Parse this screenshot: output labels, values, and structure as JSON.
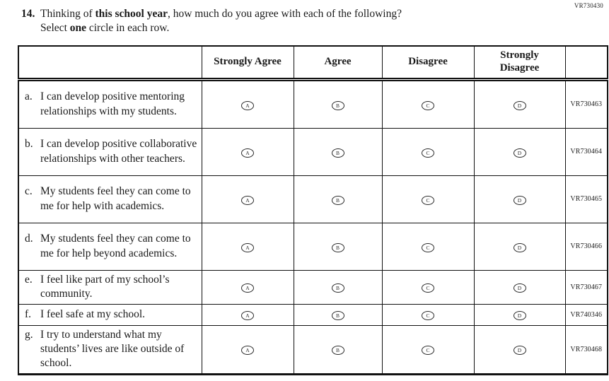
{
  "page": {
    "corner_code": "VR730430"
  },
  "question": {
    "number": "14.",
    "line1": {
      "prefix": "Thinking of ",
      "bold": "this school year",
      "suffix": ", how much do you agree with each of the following?"
    },
    "line2": {
      "prefix": "Select ",
      "bold": "one",
      "suffix": " circle in each row."
    }
  },
  "table": {
    "column_headers": [
      "Strongly Agree",
      "Agree",
      "Disagree",
      "Strongly Disagree"
    ],
    "option_letters": [
      "A",
      "B",
      "C",
      "D"
    ],
    "rows": [
      {
        "label": "a.",
        "text": "I can develop positive mentoring relationships with my students.",
        "code": "VR730463",
        "lines": 3
      },
      {
        "label": "b.",
        "text": "I can develop positive collaborative relationships with other teachers.",
        "code": "VR730464",
        "lines": 3
      },
      {
        "label": "c.",
        "text": "My students feel they can come to me for help with academics.",
        "code": "VR730465",
        "lines": 3
      },
      {
        "label": "d.",
        "text": "My students feel they can come to me for help beyond academics.",
        "code": "VR730466",
        "lines": 3
      },
      {
        "label": "e.",
        "text": "I feel like part of my school’s community.",
        "code": "VR730467",
        "lines": 2
      },
      {
        "label": "f.",
        "text": "I feel safe at my school.",
        "code": "VR740346",
        "lines": 1
      },
      {
        "label": "g.",
        "text": "I try to understand what my students’ lives are like outside of school.",
        "code": "VR730468",
        "lines": 3
      }
    ]
  }
}
